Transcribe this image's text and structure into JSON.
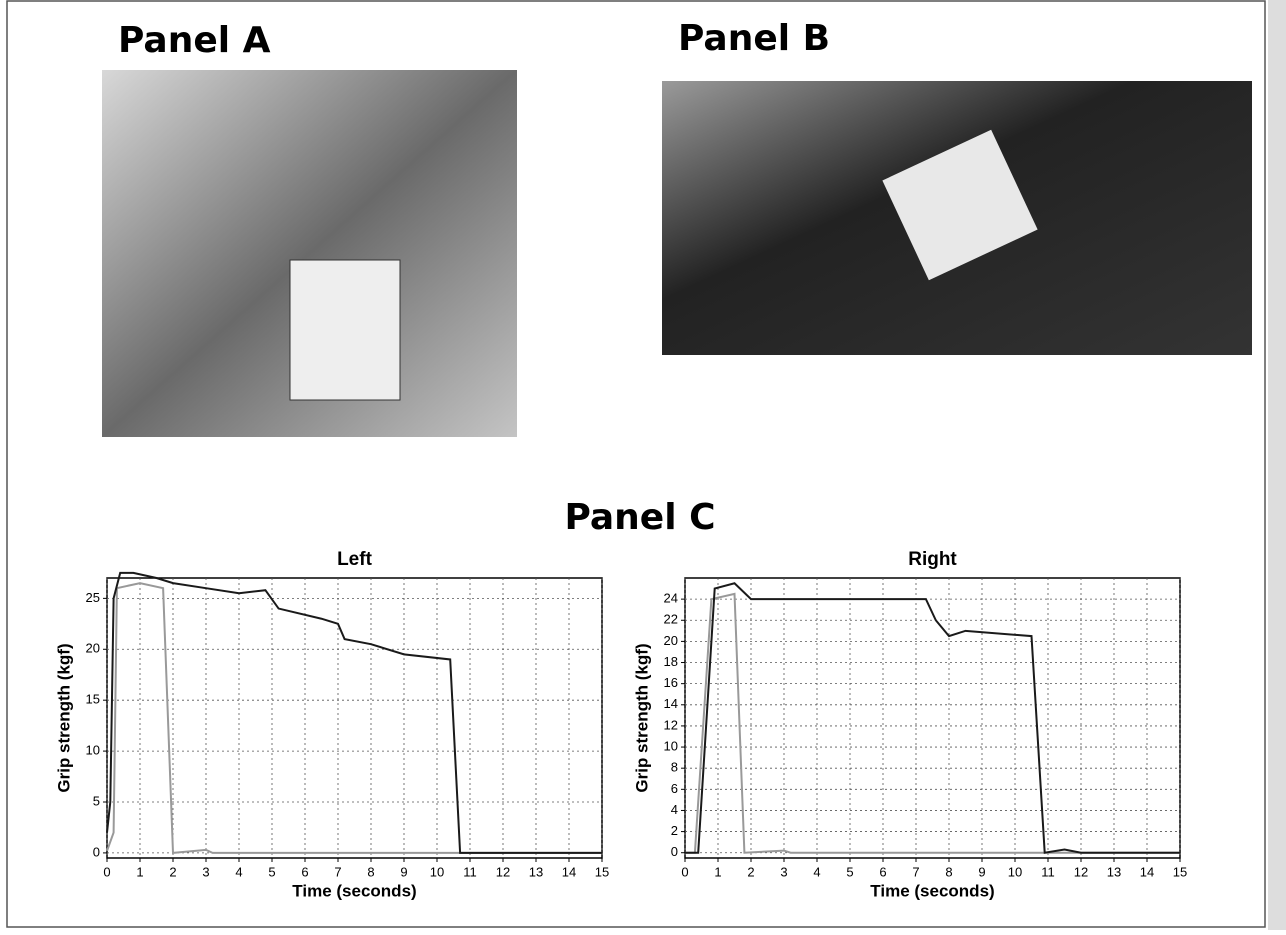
{
  "panels": {
    "a": "Panel A",
    "b": "Panel B",
    "c": "Panel C"
  },
  "chart_data": [
    {
      "type": "line",
      "title": "Left",
      "x_label": "Time (seconds)",
      "y_label": "Grip strength (kgf)",
      "xlim": [
        0,
        15
      ],
      "xticks": [
        0,
        1,
        2,
        3,
        4,
        5,
        6,
        7,
        8,
        9,
        10,
        11,
        12,
        13,
        14,
        15
      ],
      "ylim": [
        -0.5,
        27
      ],
      "yticks": [
        0,
        5,
        10,
        15,
        20,
        25
      ],
      "grid": true,
      "series": [
        {
          "color": "#1a1a1a",
          "x": [
            0,
            0.1,
            0.2,
            0.4,
            0.8,
            1.5,
            2,
            3,
            4,
            4.8,
            5.2,
            6.5,
            7,
            7.2,
            8,
            9,
            10.4,
            10.7,
            12,
            15
          ],
          "values": [
            2,
            5,
            25,
            27.5,
            27.5,
            27,
            26.5,
            26,
            25.5,
            25.8,
            24,
            23,
            22.5,
            21,
            20.5,
            19.5,
            19,
            0,
            0,
            0
          ]
        },
        {
          "color": "#999999",
          "x": [
            0,
            0.2,
            0.3,
            1,
            1.7,
            2,
            3,
            3.2,
            15
          ],
          "values": [
            0.2,
            2,
            26,
            26.5,
            26,
            0,
            0.3,
            0,
            0
          ]
        }
      ]
    },
    {
      "type": "line",
      "title": "Right",
      "x_label": "Time (seconds)",
      "y_label": "Grip strength (kgf)",
      "xlim": [
        0,
        15
      ],
      "xticks": [
        0,
        1,
        2,
        3,
        4,
        5,
        6,
        7,
        8,
        9,
        10,
        11,
        12,
        13,
        14,
        15
      ],
      "ylim": [
        -0.5,
        26
      ],
      "yticks": [
        0,
        2,
        4,
        6,
        8,
        10,
        12,
        14,
        16,
        18,
        20,
        22,
        24
      ],
      "grid": true,
      "series": [
        {
          "color": "#1a1a1a",
          "x": [
            0,
            0.4,
            0.9,
            1.5,
            2,
            7.3,
            7.6,
            8,
            8.5,
            10.5,
            10.9,
            11.5,
            12,
            15
          ],
          "values": [
            0,
            0,
            25,
            25.5,
            24,
            24,
            22,
            20.5,
            21,
            20.5,
            0,
            0.3,
            0,
            0
          ]
        },
        {
          "color": "#999999",
          "x": [
            0,
            0.3,
            0.8,
            1.5,
            1.8,
            3,
            3.2,
            15
          ],
          "values": [
            0,
            0,
            24,
            24.5,
            0,
            0.2,
            0,
            0
          ]
        }
      ]
    }
  ]
}
